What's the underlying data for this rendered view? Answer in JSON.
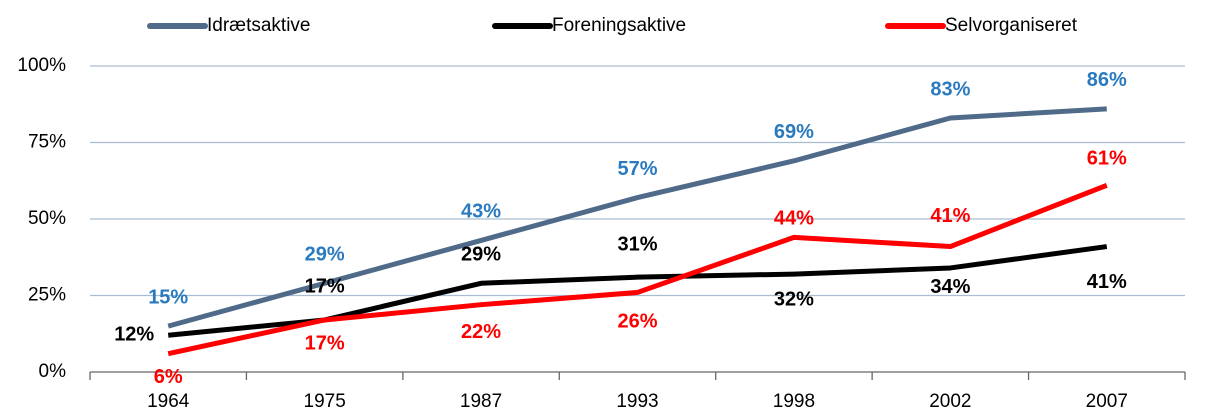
{
  "chart_data": {
    "type": "line",
    "categories": [
      "1964",
      "1975",
      "1987",
      "1993",
      "1998",
      "2002",
      "2007"
    ],
    "series": [
      {
        "name": "Idrætsaktive",
        "color": "#4f6b89",
        "label_color": "#2a7abf",
        "values": [
          15,
          29,
          43,
          57,
          69,
          83,
          86
        ],
        "value_labels": [
          "15%",
          "29%",
          "43%",
          "57%",
          "69%",
          "83%",
          "86%"
        ]
      },
      {
        "name": "Foreningsaktive",
        "color": "#000000",
        "label_color": "#000000",
        "values": [
          12,
          17,
          29,
          31,
          32,
          34,
          41
        ],
        "value_labels": [
          "12%",
          "17%",
          "29%",
          "31%",
          "32%",
          "34%",
          "41%"
        ]
      },
      {
        "name": "Selvorganiseret",
        "color": "#ff0000",
        "label_color": "#ff0000",
        "values": [
          6,
          17,
          22,
          26,
          44,
          41,
          61
        ],
        "value_labels": [
          "6%",
          "17%",
          "22%",
          "26%",
          "44%",
          "41%",
          "61%"
        ]
      }
    ],
    "ylim": [
      0,
      100
    ],
    "yticks": [
      {
        "value": 0,
        "label": "0%"
      },
      {
        "value": 25,
        "label": "25%"
      },
      {
        "value": 50,
        "label": "50%"
      },
      {
        "value": 75,
        "label": "75%"
      },
      {
        "value": 100,
        "label": "100%"
      }
    ],
    "grid": true,
    "legend": "top"
  }
}
